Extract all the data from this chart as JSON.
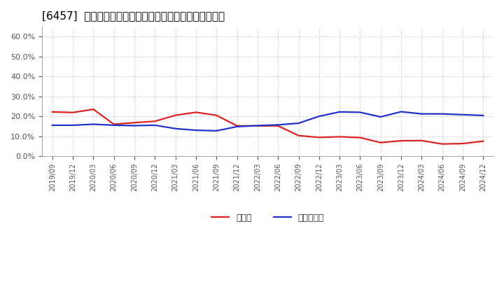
{
  "title": "[6457]  現頲金、有利子負債の総資産に対する比率の推移",
  "x_labels": [
    "2019/09",
    "2019/12",
    "2020/03",
    "2020/06",
    "2020/09",
    "2020/12",
    "2021/03",
    "2021/06",
    "2021/09",
    "2021/12",
    "2022/03",
    "2022/06",
    "2022/09",
    "2022/12",
    "2023/03",
    "2023/06",
    "2023/09",
    "2023/12",
    "2024/03",
    "2024/06",
    "2024/09",
    "2024/12"
  ],
  "cash": [
    0.222,
    0.219,
    0.235,
    0.16,
    0.168,
    0.175,
    0.205,
    0.22,
    0.205,
    0.152,
    0.152,
    0.152,
    0.103,
    0.094,
    0.097,
    0.093,
    0.068,
    0.077,
    0.078,
    0.061,
    0.063,
    0.075
  ],
  "debt": [
    0.155,
    0.155,
    0.16,
    0.155,
    0.153,
    0.155,
    0.138,
    0.13,
    0.127,
    0.148,
    0.153,
    0.157,
    0.165,
    0.2,
    0.222,
    0.22,
    0.197,
    0.223,
    0.212,
    0.212,
    0.208,
    0.204
  ],
  "cash_color": "#dd2222",
  "debt_color": "#2233cc",
  "ylim": [
    0.0,
    0.65
  ],
  "yticks": [
    0.0,
    0.1,
    0.2,
    0.3,
    0.4,
    0.5,
    0.6
  ],
  "legend_cash": "現頲金",
  "legend_debt": "有利子負債",
  "background_color": "#ffffff",
  "grid_color": "#bbbbbb",
  "line_width": 1.6,
  "title_fontsize": 11,
  "tick_fontsize": 8,
  "legend_fontsize": 9
}
